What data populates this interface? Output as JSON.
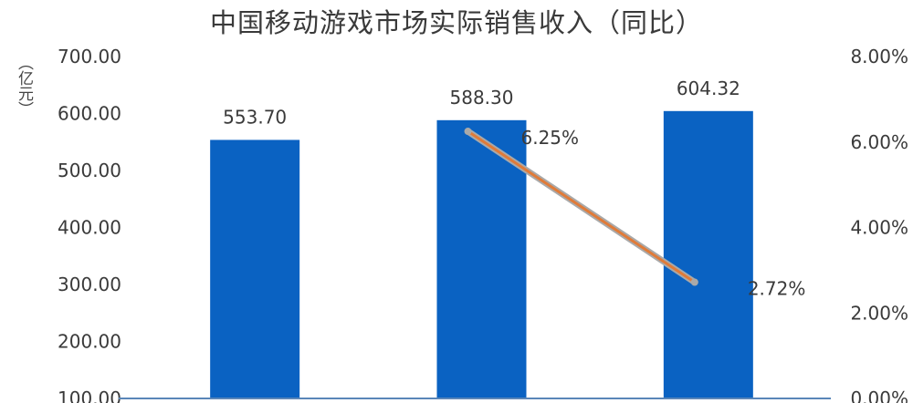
{
  "chart_data": {
    "type": "bar",
    "title": "中国移动游戏市场实际销售收入（同比）",
    "y_unit_label": "（亿元）",
    "categories": [
      "",
      "",
      ""
    ],
    "series": [
      {
        "type": "bar",
        "axis": "left",
        "values": [
          553.7,
          588.3,
          604.32
        ],
        "labels": [
          "553.70",
          "588.30",
          "604.32"
        ]
      },
      {
        "type": "line",
        "axis": "right",
        "values": [
          null,
          6.25,
          2.72
        ],
        "labels": [
          "",
          "6.25%",
          "2.72%"
        ]
      }
    ],
    "y_left": {
      "ticks": [
        "100.00",
        "200.00",
        "300.00",
        "400.00",
        "500.00",
        "600.00",
        "700.00"
      ],
      "range": [
        100,
        700
      ]
    },
    "y_right": {
      "ticks": [
        "0.00%",
        "2.00%",
        "4.00%",
        "6.00%",
        "8.00%"
      ],
      "range": [
        0,
        8
      ]
    },
    "colors": {
      "bar": "#0a62c2",
      "line": "#e07b39",
      "line_marker": "#a9a9a9",
      "baseline": "#5a86b8",
      "text": "#3a3a3a"
    },
    "grid": false,
    "legend": "none"
  }
}
